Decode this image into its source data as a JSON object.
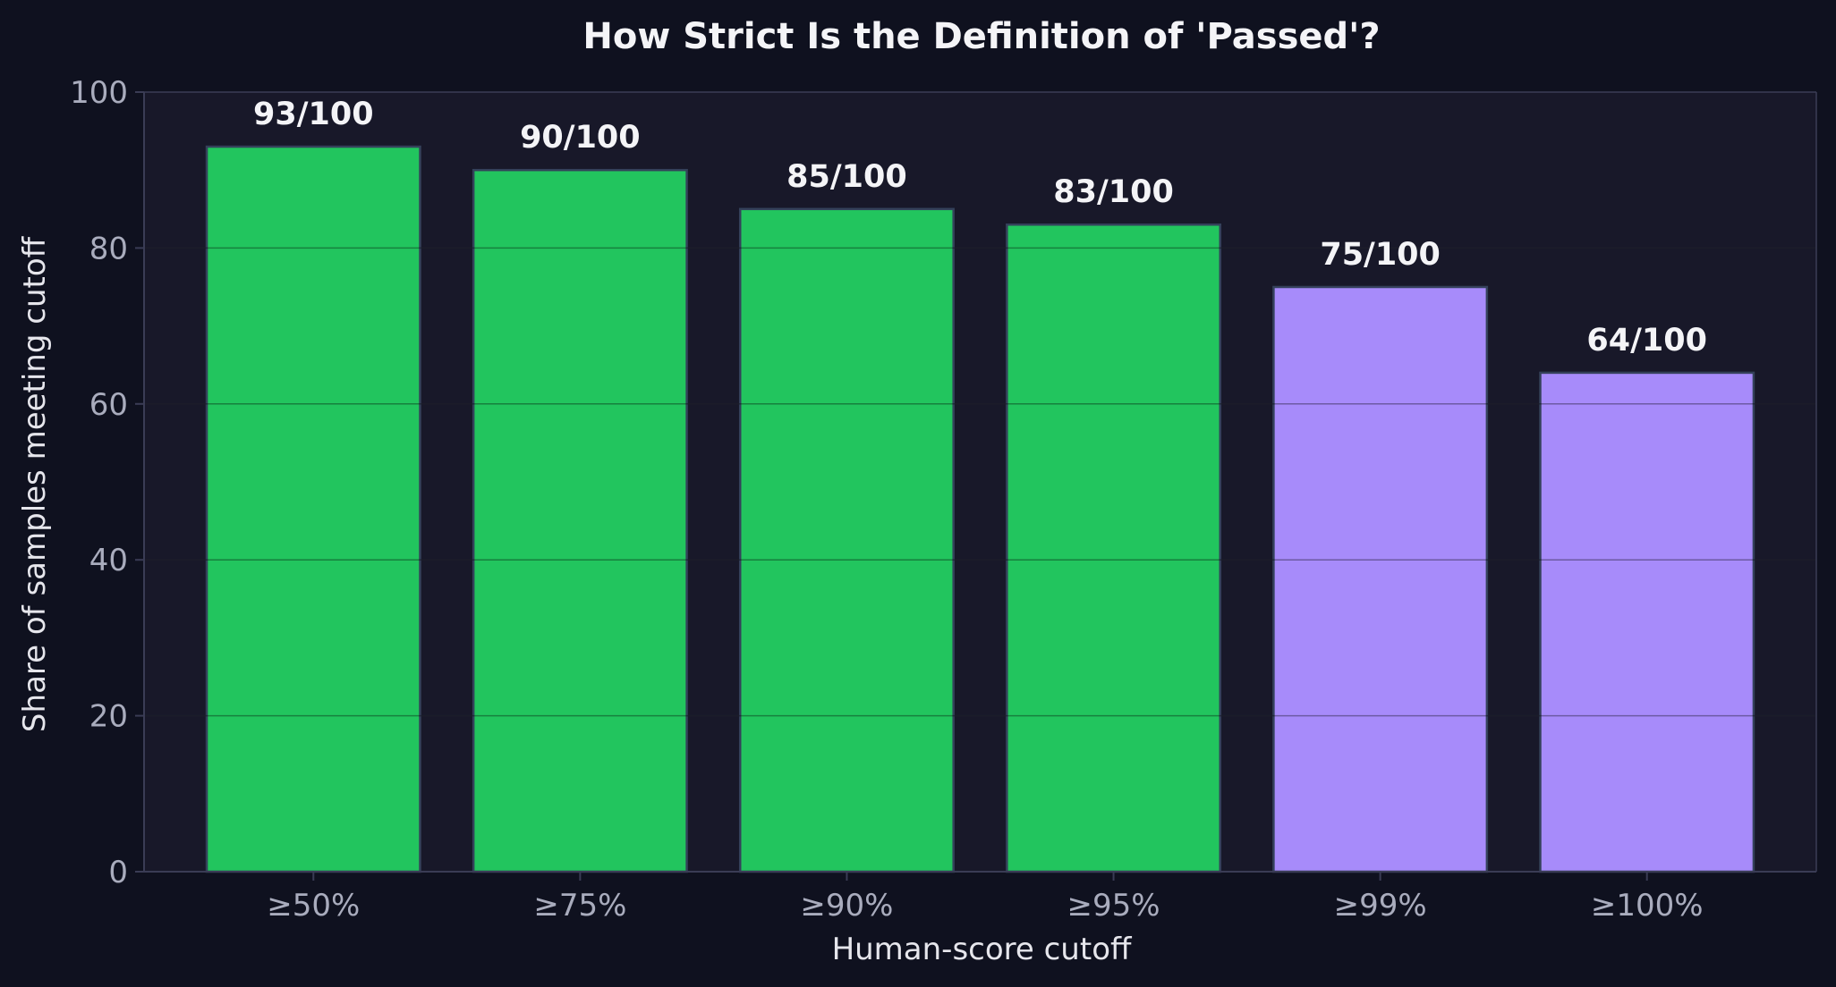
{
  "chart_data": {
    "type": "bar",
    "title": "How Strict Is the Definition of 'Passed'?",
    "xlabel": "Human-score cutoff",
    "ylabel": "Share of samples meeting cutoff",
    "categories": [
      "≥50%",
      "≥75%",
      "≥90%",
      "≥95%",
      "≥99%",
      "≥100%"
    ],
    "values": [
      93,
      90,
      85,
      83,
      75,
      64
    ],
    "data_labels": [
      "93/100",
      "90/100",
      "85/100",
      "83/100",
      "75/100",
      "64/100"
    ],
    "bar_colors": [
      "#22c55e",
      "#22c55e",
      "#22c55e",
      "#22c55e",
      "#a78bfa",
      "#a78bfa"
    ],
    "ylim": [
      0,
      100
    ],
    "yticks": [
      0,
      20,
      40,
      60,
      80,
      100
    ],
    "grid": true,
    "legend": "none"
  },
  "colors": {
    "background": "#0f111f",
    "plot_background": "#181829",
    "grid": "#2a2c40",
    "axis": "#3a3c55",
    "bar_edge": "#34415a"
  }
}
